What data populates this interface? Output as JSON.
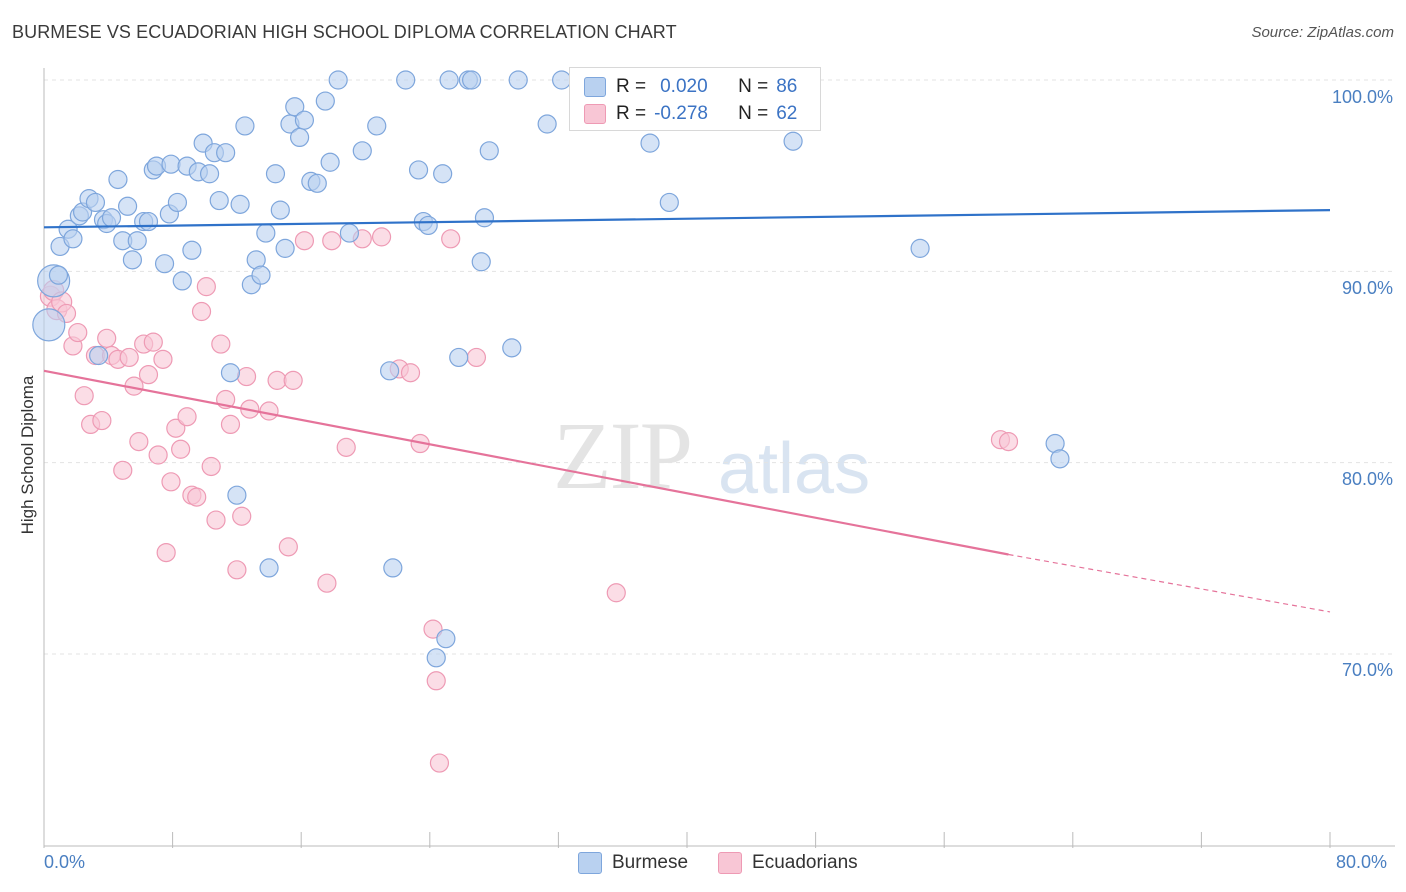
{
  "title": "BURMESE VS ECUADORIAN HIGH SCHOOL DIPLOMA CORRELATION CHART",
  "source": "Source: ZipAtlas.com",
  "watermark": {
    "zip": "ZIP",
    "atlas": "atlas"
  },
  "legend": {
    "burmese": {
      "r_label": "R =",
      "r_value": "0.020",
      "n_label": "N =",
      "n_value": "86"
    },
    "ecuadorian": {
      "r_label": "R =",
      "r_value": "-0.278",
      "n_label": "N =",
      "n_value": "62"
    }
  },
  "bottom_legend": {
    "burmese": "Burmese",
    "ecuadorians": "Ecuadorians"
  },
  "colors": {
    "burmese_fill": "#b9d1f0",
    "burmese_stroke": "#7ea6dc",
    "burmese_line": "#2f72c9",
    "ecuador_fill": "#f8c6d5",
    "ecuador_stroke": "#ee9ab4",
    "ecuador_line": "#e5739a",
    "tick_text": "#4a7fc1",
    "grid": "#e3e3e3"
  },
  "chart_data": {
    "type": "scatter",
    "title": "BURMESE VS ECUADORIAN HIGH SCHOOL DIPLOMA CORRELATION CHART",
    "xlabel": "",
    "ylabel": "High School Diploma",
    "xlim": [
      0,
      80
    ],
    "ylim": [
      60,
      102
    ],
    "x_tick_labels": [
      "0.0%",
      "80.0%"
    ],
    "y_ticks": [
      70,
      80,
      90,
      100
    ],
    "y_tick_labels": [
      "70.0%",
      "80.0%",
      "90.0%",
      "100.0%"
    ],
    "grid": true,
    "legend_position": "top-center",
    "series": [
      {
        "name": "Burmese",
        "r": 0.02,
        "n": 86,
        "trend": {
          "x": [
            0,
            80
          ],
          "y": [
            92.3,
            93.2
          ],
          "style": "solid"
        },
        "points": [
          [
            0.3,
            87.2
          ],
          [
            0.6,
            89.5
          ],
          [
            0.9,
            89.8
          ],
          [
            1.0,
            91.3
          ],
          [
            1.5,
            92.2
          ],
          [
            1.8,
            91.7
          ],
          [
            2.2,
            92.9
          ],
          [
            2.4,
            93.1
          ],
          [
            2.8,
            93.8
          ],
          [
            3.2,
            93.6
          ],
          [
            3.4,
            85.6
          ],
          [
            3.7,
            92.7
          ],
          [
            3.9,
            92.5
          ],
          [
            4.2,
            92.8
          ],
          [
            4.6,
            94.8
          ],
          [
            4.9,
            91.6
          ],
          [
            5.2,
            93.4
          ],
          [
            5.5,
            90.6
          ],
          [
            5.8,
            91.6
          ],
          [
            6.2,
            92.6
          ],
          [
            6.5,
            92.6
          ],
          [
            6.8,
            95.3
          ],
          [
            7.0,
            95.5
          ],
          [
            7.5,
            90.4
          ],
          [
            7.8,
            93.0
          ],
          [
            7.9,
            95.6
          ],
          [
            8.3,
            93.6
          ],
          [
            8.6,
            89.5
          ],
          [
            8.9,
            95.5
          ],
          [
            9.2,
            91.1
          ],
          [
            9.6,
            95.2
          ],
          [
            9.9,
            96.7
          ],
          [
            10.3,
            95.1
          ],
          [
            10.6,
            96.2
          ],
          [
            10.9,
            93.7
          ],
          [
            11.3,
            96.2
          ],
          [
            11.6,
            84.7
          ],
          [
            12.0,
            78.3
          ],
          [
            12.2,
            93.5
          ],
          [
            12.5,
            97.6
          ],
          [
            12.9,
            89.3
          ],
          [
            13.2,
            90.6
          ],
          [
            13.5,
            89.8
          ],
          [
            13.8,
            92.0
          ],
          [
            14.0,
            74.5
          ],
          [
            14.4,
            95.1
          ],
          [
            14.7,
            93.2
          ],
          [
            15.0,
            91.2
          ],
          [
            15.3,
            97.7
          ],
          [
            15.6,
            98.6
          ],
          [
            15.9,
            97.0
          ],
          [
            16.2,
            97.9
          ],
          [
            16.6,
            94.7
          ],
          [
            17.0,
            94.6
          ],
          [
            17.5,
            98.9
          ],
          [
            17.8,
            95.7
          ],
          [
            18.3,
            100.0
          ],
          [
            19.0,
            92.0
          ],
          [
            19.8,
            96.3
          ],
          [
            20.7,
            97.6
          ],
          [
            21.5,
            84.8
          ],
          [
            21.7,
            74.5
          ],
          [
            22.5,
            100.0
          ],
          [
            23.3,
            95.3
          ],
          [
            23.6,
            92.6
          ],
          [
            23.9,
            92.4
          ],
          [
            24.4,
            69.8
          ],
          [
            24.8,
            95.1
          ],
          [
            25.0,
            70.8
          ],
          [
            25.2,
            100.0
          ],
          [
            25.8,
            85.5
          ],
          [
            26.4,
            100.0
          ],
          [
            26.6,
            100.0
          ],
          [
            27.2,
            90.5
          ],
          [
            27.4,
            92.8
          ],
          [
            27.7,
            96.3
          ],
          [
            29.1,
            86.0
          ],
          [
            29.5,
            100.0
          ],
          [
            31.3,
            97.7
          ],
          [
            32.2,
            100.0
          ],
          [
            37.7,
            96.7
          ],
          [
            38.9,
            93.6
          ],
          [
            46.6,
            96.8
          ],
          [
            54.5,
            91.2
          ],
          [
            62.9,
            81.0
          ],
          [
            63.2,
            80.2
          ]
        ]
      },
      {
        "name": "Ecuadorians",
        "r": -0.278,
        "n": 62,
        "trend": {
          "x": [
            0,
            60
          ],
          "y": [
            84.8,
            75.2
          ],
          "style": "solid",
          "dashed_extension_to": [
            80,
            72.2
          ]
        },
        "points": [
          [
            0.4,
            88.7
          ],
          [
            0.6,
            89.0
          ],
          [
            0.8,
            88.0
          ],
          [
            1.1,
            88.4
          ],
          [
            1.4,
            87.8
          ],
          [
            1.8,
            86.1
          ],
          [
            2.1,
            86.8
          ],
          [
            2.5,
            83.5
          ],
          [
            2.9,
            82.0
          ],
          [
            3.2,
            85.6
          ],
          [
            3.6,
            82.2
          ],
          [
            3.9,
            86.5
          ],
          [
            4.2,
            85.6
          ],
          [
            4.6,
            85.4
          ],
          [
            4.9,
            79.6
          ],
          [
            5.3,
            85.5
          ],
          [
            5.6,
            84.0
          ],
          [
            5.9,
            81.1
          ],
          [
            6.2,
            86.2
          ],
          [
            6.5,
            84.6
          ],
          [
            6.8,
            86.3
          ],
          [
            7.1,
            80.4
          ],
          [
            7.4,
            85.4
          ],
          [
            7.6,
            75.3
          ],
          [
            7.9,
            79.0
          ],
          [
            8.2,
            81.8
          ],
          [
            8.5,
            80.7
          ],
          [
            8.9,
            82.4
          ],
          [
            9.2,
            78.3
          ],
          [
            9.5,
            78.2
          ],
          [
            9.8,
            87.9
          ],
          [
            10.1,
            89.2
          ],
          [
            10.4,
            79.8
          ],
          [
            10.7,
            77.0
          ],
          [
            11.0,
            86.2
          ],
          [
            11.3,
            83.3
          ],
          [
            11.6,
            82.0
          ],
          [
            12.0,
            74.4
          ],
          [
            12.3,
            77.2
          ],
          [
            12.6,
            84.5
          ],
          [
            12.8,
            82.8
          ],
          [
            14.0,
            82.7
          ],
          [
            14.5,
            84.3
          ],
          [
            15.2,
            75.6
          ],
          [
            15.5,
            84.3
          ],
          [
            16.2,
            91.6
          ],
          [
            17.6,
            73.7
          ],
          [
            17.9,
            91.6
          ],
          [
            18.8,
            80.8
          ],
          [
            19.8,
            91.7
          ],
          [
            21.0,
            91.8
          ],
          [
            22.1,
            84.9
          ],
          [
            22.8,
            84.7
          ],
          [
            23.4,
            81.0
          ],
          [
            24.2,
            71.3
          ],
          [
            24.4,
            68.6
          ],
          [
            24.6,
            64.3
          ],
          [
            25.3,
            91.7
          ],
          [
            26.9,
            85.5
          ],
          [
            35.6,
            73.2
          ],
          [
            59.5,
            81.2
          ],
          [
            60.0,
            81.1
          ]
        ]
      }
    ]
  }
}
